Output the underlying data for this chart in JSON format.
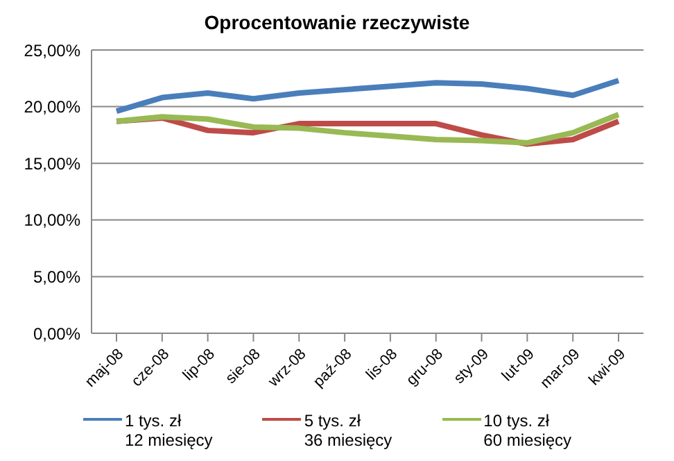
{
  "chart_data": {
    "type": "line",
    "title": "Oprocentowanie rzeczywiste",
    "categories": [
      "maj-08",
      "cze-08",
      "lip-08",
      "sie-08",
      "wrz-08",
      "paź-08",
      "lis-08",
      "gru-08",
      "sty-09",
      "lut-09",
      "mar-09",
      "kwi-09"
    ],
    "series": [
      {
        "name": "1 tys. zł\n12 miesięcy",
        "color": "#4a7ebb",
        "values": [
          19.6,
          20.8,
          21.2,
          20.7,
          21.2,
          21.5,
          21.8,
          22.1,
          22.0,
          21.6,
          21.0,
          22.3
        ]
      },
      {
        "name": "5 tys. zł\n36 miesięcy",
        "color": "#be4b48",
        "values": [
          18.7,
          19.0,
          17.9,
          17.7,
          18.5,
          18.5,
          18.5,
          18.5,
          17.5,
          16.7,
          17.1,
          18.7
        ]
      },
      {
        "name": "10 tys. zł\n60 miesięcy",
        "color": "#98b954",
        "values": [
          18.7,
          19.1,
          18.9,
          18.2,
          18.1,
          17.7,
          17.4,
          17.1,
          17.0,
          16.8,
          17.7,
          19.3
        ]
      }
    ],
    "ylim": [
      0,
      25
    ],
    "yticks": [
      {
        "value": 0,
        "label": "0,00%"
      },
      {
        "value": 5,
        "label": "5,00%"
      },
      {
        "value": 10,
        "label": "10,00%"
      },
      {
        "value": 15,
        "label": "15,00%"
      },
      {
        "value": 20,
        "label": "20,00%"
      },
      {
        "value": 25,
        "label": "25,00%"
      }
    ],
    "grid": "y",
    "legend": "bottom",
    "marker": "none",
    "line_style": "solid"
  }
}
